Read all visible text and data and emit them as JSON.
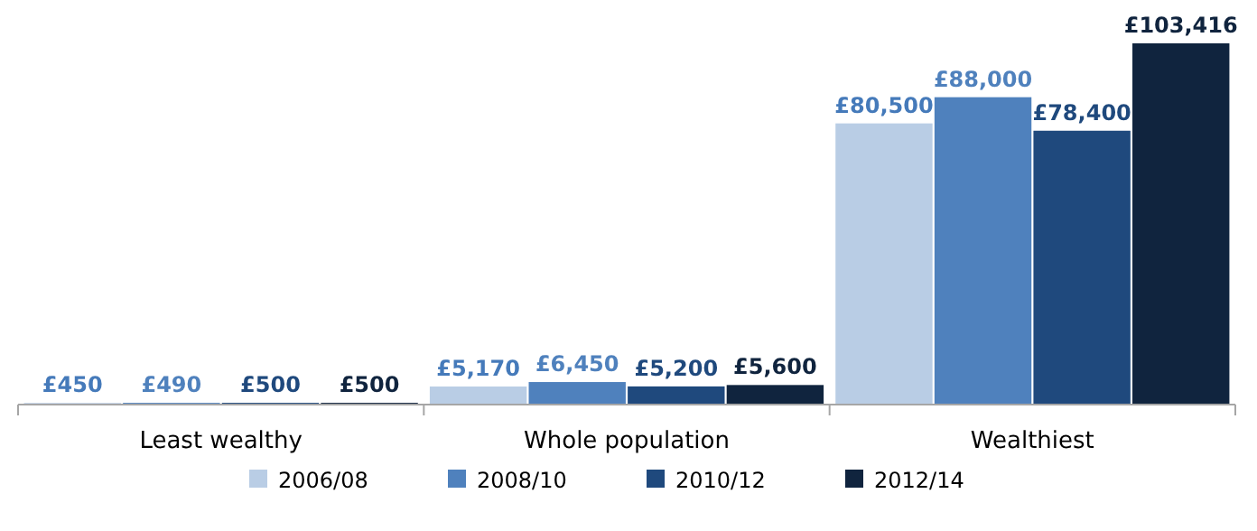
{
  "chart_data": {
    "type": "bar",
    "categories": [
      "Least wealthy",
      "Whole population",
      "Wealthiest"
    ],
    "legend": "bottom",
    "series": [
      {
        "name": "2006/08",
        "color": "#b9cde5",
        "values": [
          450,
          5170,
          80500
        ],
        "value_labels": [
          "£450",
          "£5,170",
          "£80,500"
        ]
      },
      {
        "name": "2008/10",
        "color": "#4f81bd",
        "values": [
          490,
          6450,
          88000
        ],
        "value_labels": [
          "£490",
          "£6,450",
          "£88,000"
        ]
      },
      {
        "name": "2010/12",
        "color": "#1f497d",
        "values": [
          500,
          5200,
          78400
        ],
        "value_labels": [
          "£500",
          "£5,200",
          "£78,400"
        ]
      },
      {
        "name": "2012/14",
        "color": "#10243e",
        "values": [
          500,
          5600,
          103416
        ],
        "value_labels": [
          "£500",
          "£5,600",
          "£103,416"
        ]
      }
    ]
  }
}
